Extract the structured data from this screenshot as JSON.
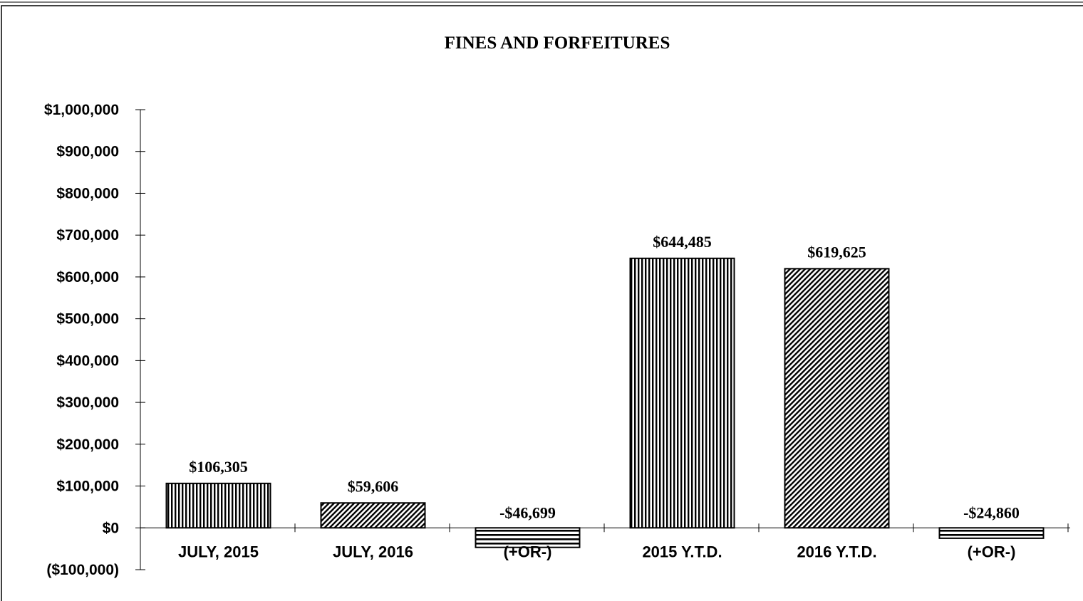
{
  "chart_data": {
    "type": "bar",
    "title": "FINES AND FORFEITURES",
    "xlabel": "",
    "ylabel": "",
    "ylim": [
      -100000,
      1000000
    ],
    "y_tick_step": 100000,
    "y_tick_labels": [
      "($100,000)",
      "$0",
      "$100,000",
      "$200,000",
      "$300,000",
      "$400,000",
      "$500,000",
      "$600,000",
      "$700,000",
      "$800,000",
      "$900,000",
      "$1,000,000"
    ],
    "grid": false,
    "legend": "none",
    "categories": [
      "JULY, 2015",
      "JULY, 2016",
      "(+OR-)",
      "2015 Y.T.D.",
      "2016 Y.T.D.",
      "(+OR-)"
    ],
    "values": [
      106305,
      59606,
      -46699,
      644485,
      619625,
      -24860
    ],
    "data_labels": [
      "$106,305",
      "$59,606",
      "-$46,699",
      "$644,485",
      "$619,625",
      "-$24,860"
    ],
    "bar_patterns": [
      "vertical-stripes",
      "diagonal-hatch",
      "horizontal-stripes",
      "vertical-stripes",
      "diagonal-hatch",
      "horizontal-stripes"
    ],
    "colors": {
      "ink": "#000000",
      "background": "#ffffff"
    }
  }
}
